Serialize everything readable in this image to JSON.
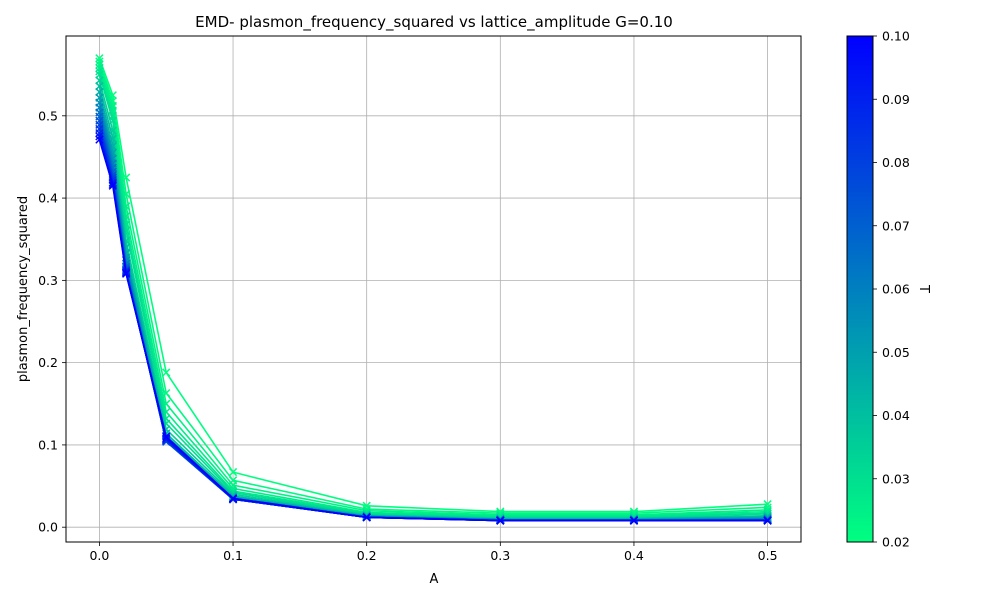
{
  "chart_data": {
    "type": "line",
    "title": "EMD- plasmon_frequency_squared vs lattice_amplitude G=0.10",
    "xlabel": "A",
    "ylabel": "plasmon_frequency_squared",
    "x": [
      0.0,
      0.01,
      0.02,
      0.05,
      0.1,
      0.2,
      0.3,
      0.4,
      0.5
    ],
    "xlim": [
      -0.025,
      0.525
    ],
    "ylim": [
      -0.018,
      0.597
    ],
    "xticks": [
      "0.0",
      "0.1",
      "0.2",
      "0.3",
      "0.4",
      "0.5"
    ],
    "xtick_values": [
      0.0,
      0.1,
      0.2,
      0.3,
      0.4,
      0.5
    ],
    "yticks": [
      "0.0",
      "0.1",
      "0.2",
      "0.3",
      "0.4",
      "0.5"
    ],
    "ytick_values": [
      0.0,
      0.1,
      0.2,
      0.3,
      0.4,
      0.5
    ],
    "grid": true,
    "marker": "x",
    "colormap": "winter",
    "color_low": "#00ff80",
    "color_high": "#0000ff",
    "colorbar": {
      "label": "T",
      "range": [
        0.02,
        0.1
      ],
      "ticks": [
        "0.02",
        "0.03",
        "0.04",
        "0.05",
        "0.06",
        "0.07",
        "0.08",
        "0.09",
        "0.10"
      ],
      "tick_values": [
        0.02,
        0.03,
        0.04,
        0.05,
        0.06,
        0.07,
        0.08,
        0.09,
        0.1
      ]
    },
    "series": [
      {
        "t": 0.02,
        "values": [
          0.57,
          0.525,
          0.425,
          0.188,
          0.067,
          0.026,
          0.019,
          0.019,
          0.028
        ]
      },
      {
        "t": 0.022,
        "values": [
          0.566,
          0.518,
          0.405,
          0.163,
          0.057,
          0.022,
          0.017,
          0.017,
          0.024
        ]
      },
      {
        "t": 0.024,
        "values": [
          0.562,
          0.512,
          0.39,
          0.15,
          0.051,
          0.02,
          0.015,
          0.015,
          0.021
        ]
      },
      {
        "t": 0.026,
        "values": [
          0.558,
          0.506,
          0.378,
          0.14,
          0.047,
          0.018,
          0.014,
          0.014,
          0.019
        ]
      },
      {
        "t": 0.028,
        "values": [
          0.554,
          0.5,
          0.368,
          0.132,
          0.044,
          0.017,
          0.013,
          0.013,
          0.017
        ]
      },
      {
        "t": 0.03,
        "values": [
          0.55,
          0.494,
          0.36,
          0.126,
          0.042,
          0.016,
          0.012,
          0.012,
          0.016
        ]
      },
      {
        "t": 0.035,
        "values": [
          0.543,
          0.482,
          0.348,
          0.119,
          0.04,
          0.015,
          0.011,
          0.011,
          0.014
        ]
      },
      {
        "t": 0.04,
        "values": [
          0.536,
          0.472,
          0.34,
          0.114,
          0.038,
          0.014,
          0.01,
          0.01,
          0.013
        ]
      },
      {
        "t": 0.045,
        "values": [
          0.529,
          0.463,
          0.333,
          0.111,
          0.037,
          0.014,
          0.01,
          0.01,
          0.012
        ]
      },
      {
        "t": 0.05,
        "values": [
          0.522,
          0.455,
          0.328,
          0.108,
          0.036,
          0.013,
          0.009,
          0.009,
          0.011
        ]
      },
      {
        "t": 0.055,
        "values": [
          0.516,
          0.448,
          0.324,
          0.106,
          0.035,
          0.013,
          0.009,
          0.009,
          0.01
        ]
      },
      {
        "t": 0.06,
        "values": [
          0.51,
          0.442,
          0.32,
          0.105,
          0.035,
          0.013,
          0.009,
          0.009,
          0.01
        ]
      },
      {
        "t": 0.065,
        "values": [
          0.504,
          0.437,
          0.317,
          0.104,
          0.034,
          0.012,
          0.009,
          0.009,
          0.009
        ]
      },
      {
        "t": 0.07,
        "values": [
          0.499,
          0.432,
          0.315,
          0.104,
          0.034,
          0.012,
          0.009,
          0.009,
          0.009
        ]
      },
      {
        "t": 0.075,
        "values": [
          0.494,
          0.428,
          0.313,
          0.104,
          0.034,
          0.012,
          0.008,
          0.008,
          0.009
        ]
      },
      {
        "t": 0.08,
        "values": [
          0.489,
          0.425,
          0.312,
          0.105,
          0.034,
          0.012,
          0.008,
          0.008,
          0.008
        ]
      },
      {
        "t": 0.085,
        "values": [
          0.484,
          0.422,
          0.311,
          0.106,
          0.034,
          0.012,
          0.008,
          0.008,
          0.008
        ]
      },
      {
        "t": 0.09,
        "values": [
          0.479,
          0.419,
          0.31,
          0.107,
          0.034,
          0.012,
          0.008,
          0.008,
          0.008
        ]
      },
      {
        "t": 0.095,
        "values": [
          0.475,
          0.417,
          0.309,
          0.108,
          0.035,
          0.012,
          0.008,
          0.008,
          0.008
        ]
      },
      {
        "t": 0.1,
        "values": [
          0.471,
          0.415,
          0.308,
          0.11,
          0.035,
          0.012,
          0.008,
          0.008,
          0.008
        ]
      }
    ]
  }
}
